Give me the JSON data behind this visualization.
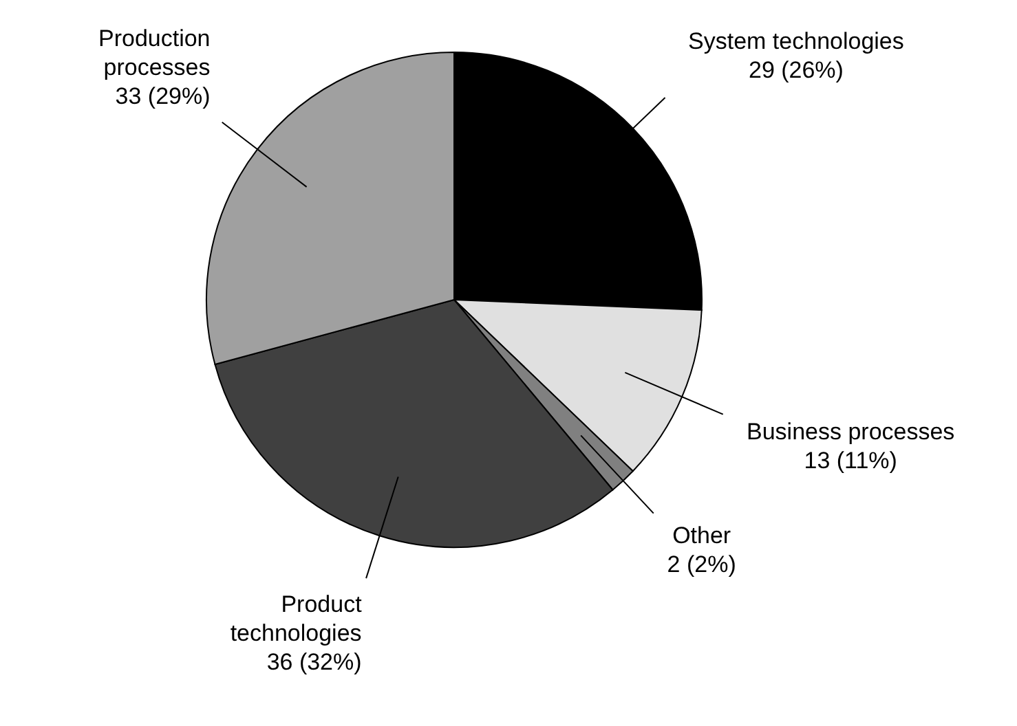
{
  "chart_data": {
    "type": "pie",
    "categories": [
      "System technologies",
      "Business processes",
      "Other",
      "Product technologies",
      "Production processes"
    ],
    "values": [
      29,
      13,
      2,
      36,
      33
    ],
    "value_labels": [
      "29 (26%)",
      "13 (11%)",
      "2 (2%)",
      "36 (32%)",
      "33 (29%)"
    ],
    "colors": [
      "#000000",
      "#e0e0e0",
      "#808080",
      "#404040",
      "#a0a0a0"
    ],
    "legend": false
  }
}
